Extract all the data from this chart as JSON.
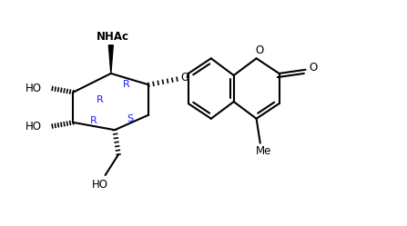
{
  "background": "#ffffff",
  "bond_color": "#000000",
  "label_color": "#1a1aff",
  "label_color2": "#cc6600",
  "figsize": [
    4.47,
    2.49
  ],
  "dpi": 100,
  "xlim": [
    0,
    10
  ],
  "ylim": [
    0,
    6
  ]
}
